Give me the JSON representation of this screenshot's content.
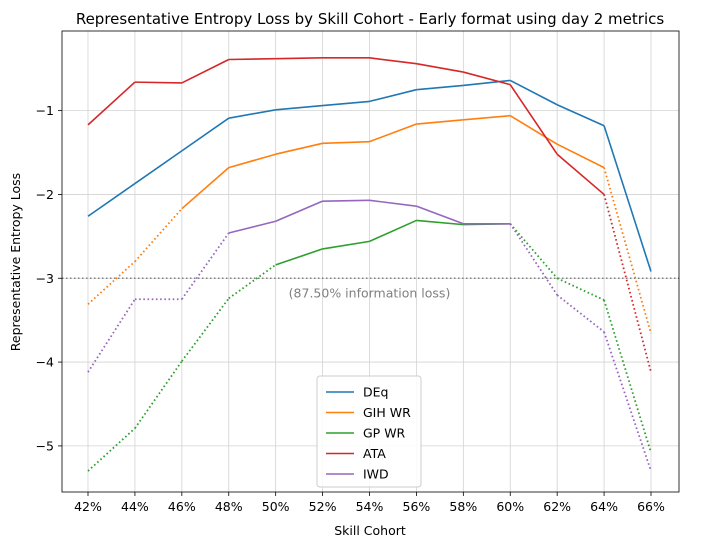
{
  "chart_data": {
    "type": "line",
    "title": "Representative Entropy Loss by Skill Cohort - Early format using day 2 metrics",
    "xlabel": "Skill Cohort",
    "ylabel": "Representative Entropy Loss",
    "categories": [
      "42%",
      "44%",
      "46%",
      "48%",
      "50%",
      "52%",
      "54%",
      "56%",
      "58%",
      "60%",
      "62%",
      "64%",
      "66%"
    ],
    "ylim": [
      -5.55,
      -0.05
    ],
    "yticks": [
      -5,
      -4,
      -3,
      -2,
      -1
    ],
    "ytick_labels": [
      "−5",
      "−4",
      "−3",
      "−2",
      "−1"
    ],
    "grid": true,
    "legend_position": "lower-center",
    "reference_line": {
      "y": -3.0,
      "label": "(87.50% information loss)",
      "color": "#808080"
    },
    "series": [
      {
        "name": "DEq",
        "color": "#1f77b4",
        "values": [
          -2.26,
          -1.87,
          -1.48,
          -1.09,
          -0.99,
          -0.94,
          -0.89,
          -0.75,
          -0.7,
          -0.64,
          -0.93,
          -1.18,
          -2.92
        ],
        "solid": [
          true,
          true,
          true,
          true,
          true,
          true,
          true,
          true,
          true,
          true,
          true,
          true,
          true
        ]
      },
      {
        "name": "GIH WR",
        "color": "#ff7f0e",
        "values": [
          -3.31,
          -2.8,
          -2.17,
          -1.68,
          -1.52,
          -1.39,
          -1.37,
          -1.16,
          -1.11,
          -1.06,
          -1.4,
          -1.68,
          -3.66
        ],
        "solid": [
          false,
          false,
          true,
          true,
          true,
          true,
          true,
          true,
          true,
          true,
          true,
          true,
          false
        ]
      },
      {
        "name": "GP WR",
        "color": "#2ca02c",
        "values": [
          -5.3,
          -4.79,
          -3.99,
          -3.24,
          -2.84,
          -2.65,
          -2.56,
          -2.31,
          -2.36,
          -2.35,
          -3.0,
          -3.26,
          -5.08
        ],
        "solid": [
          false,
          false,
          false,
          false,
          true,
          true,
          true,
          true,
          true,
          true,
          false,
          false,
          false
        ]
      },
      {
        "name": "ATA",
        "color": "#d62728",
        "values": [
          -1.17,
          -0.66,
          -0.67,
          -0.39,
          -0.38,
          -0.37,
          -0.37,
          -0.44,
          -0.54,
          -0.69,
          -1.52,
          -2.0,
          -4.12
        ],
        "solid": [
          true,
          true,
          true,
          true,
          true,
          true,
          true,
          true,
          true,
          true,
          true,
          true,
          false
        ]
      },
      {
        "name": "IWD",
        "color": "#9467bd",
        "values": [
          -4.12,
          -3.25,
          -3.25,
          -2.46,
          -2.32,
          -2.08,
          -2.07,
          -2.14,
          -2.35,
          -2.35,
          -3.2,
          -3.64,
          -5.3
        ],
        "solid": [
          false,
          false,
          false,
          true,
          true,
          true,
          true,
          true,
          true,
          true,
          false,
          false,
          false
        ]
      }
    ]
  }
}
